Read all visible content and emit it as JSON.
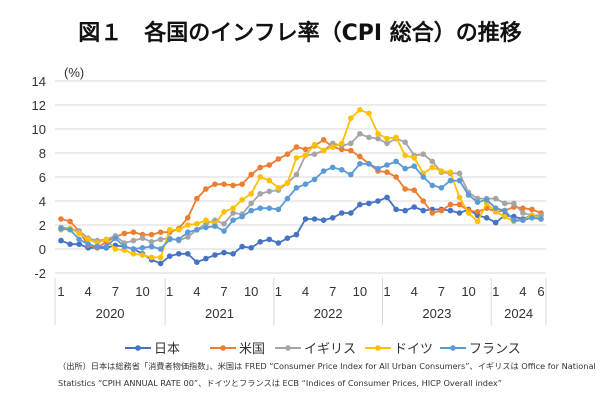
{
  "chart_data": {
    "type": "line",
    "title": "図１　各国のインフレ率（CPI 総合）の推移",
    "ylabel": "(%)",
    "ylim": [
      -2,
      14
    ],
    "yticks": [
      "-2",
      "0",
      "2",
      "4",
      "6",
      "8",
      "10",
      "12",
      "14"
    ],
    "grid": true,
    "legend_position": "bottom",
    "x_tick_labels": [
      {
        "month": 1,
        "label": "1"
      },
      {
        "month": 4,
        "label": "4"
      },
      {
        "month": 7,
        "label": "7"
      },
      {
        "month": 10,
        "label": "10"
      },
      {
        "month": 13,
        "label": "1"
      },
      {
        "month": 16,
        "label": "4"
      },
      {
        "month": 19,
        "label": "7"
      },
      {
        "month": 22,
        "label": "10"
      },
      {
        "month": 25,
        "label": "1"
      },
      {
        "month": 28,
        "label": "4"
      },
      {
        "month": 31,
        "label": "7"
      },
      {
        "month": 34,
        "label": "10"
      },
      {
        "month": 37,
        "label": "1"
      },
      {
        "month": 40,
        "label": "4"
      },
      {
        "month": 43,
        "label": "7"
      },
      {
        "month": 46,
        "label": "10"
      },
      {
        "month": 49,
        "label": "1"
      },
      {
        "month": 52,
        "label": "4"
      },
      {
        "month": 54,
        "label": "6"
      }
    ],
    "years": [
      "2020",
      "2021",
      "2022",
      "2023",
      "2024"
    ],
    "series": [
      {
        "name": "日本",
        "color": "#4472C4",
        "values": [
          0.7,
          0.4,
          0.4,
          0.1,
          0.1,
          0.1,
          0.3,
          0.2,
          0.0,
          -0.4,
          -0.9,
          -1.2,
          -0.6,
          -0.4,
          -0.4,
          -1.1,
          -0.8,
          -0.5,
          -0.3,
          -0.4,
          0.2,
          0.1,
          0.6,
          0.8,
          0.5,
          0.9,
          1.2,
          2.5,
          2.5,
          2.4,
          2.6,
          3.0,
          3.0,
          3.7,
          3.8,
          4.0,
          4.3,
          3.3,
          3.2,
          3.5,
          3.2,
          3.3,
          3.3,
          3.2,
          3.0,
          3.3,
          2.8,
          2.6,
          2.2,
          2.8,
          2.7,
          2.5,
          2.8,
          2.8
        ]
      },
      {
        "name": "米国",
        "color": "#ED7D31",
        "values": [
          2.5,
          2.3,
          1.5,
          0.3,
          0.1,
          0.6,
          1.0,
          1.3,
          1.4,
          1.2,
          1.2,
          1.4,
          1.4,
          1.7,
          2.6,
          4.2,
          5.0,
          5.4,
          5.4,
          5.3,
          5.4,
          6.2,
          6.8,
          7.0,
          7.5,
          7.9,
          8.5,
          8.3,
          8.6,
          9.1,
          8.5,
          8.3,
          8.2,
          7.7,
          7.1,
          6.5,
          6.4,
          6.0,
          5.0,
          4.9,
          4.0,
          3.0,
          3.2,
          3.7,
          3.7,
          3.2,
          3.1,
          3.4,
          3.1,
          3.2,
          3.5,
          3.4,
          3.3,
          3.0
        ]
      },
      {
        "name": "イギリス",
        "color": "#A5A5A5",
        "values": [
          1.8,
          1.7,
          1.5,
          0.9,
          0.7,
          0.8,
          1.1,
          0.5,
          0.7,
          0.9,
          0.6,
          0.8,
          0.9,
          0.7,
          1.0,
          1.6,
          2.1,
          2.4,
          2.1,
          3.0,
          2.9,
          3.8,
          4.6,
          4.8,
          4.9,
          5.5,
          6.2,
          7.8,
          7.9,
          8.2,
          8.8,
          8.6,
          8.8,
          9.6,
          9.3,
          9.2,
          8.8,
          9.2,
          8.9,
          7.8,
          7.9,
          7.3,
          6.4,
          6.3,
          6.3,
          4.7,
          4.2,
          4.2,
          4.2,
          3.8,
          3.8,
          3.0,
          2.8,
          2.8
        ]
      },
      {
        "name": "ドイツ",
        "color": "#FFC000",
        "values": [
          1.6,
          1.7,
          1.3,
          0.8,
          0.5,
          0.8,
          0.0,
          -0.1,
          -0.4,
          -0.5,
          -0.7,
          -0.7,
          1.6,
          1.6,
          2.0,
          2.1,
          2.4,
          2.1,
          3.1,
          3.4,
          4.1,
          4.6,
          6.0,
          5.7,
          5.1,
          5.5,
          7.6,
          7.8,
          8.7,
          8.2,
          8.5,
          8.8,
          10.9,
          11.6,
          11.3,
          9.6,
          9.2,
          9.3,
          7.8,
          7.6,
          6.3,
          6.8,
          6.5,
          6.4,
          4.3,
          3.0,
          2.3,
          3.8,
          3.1,
          2.7,
          2.3,
          2.4,
          2.8,
          2.5
        ]
      },
      {
        "name": "フランス",
        "color": "#5B9BD5",
        "values": [
          1.7,
          1.6,
          0.8,
          0.4,
          0.2,
          0.2,
          0.9,
          0.2,
          0.0,
          0.1,
          0.2,
          0.0,
          0.8,
          0.8,
          1.4,
          1.6,
          1.8,
          1.9,
          1.5,
          2.4,
          2.7,
          3.2,
          3.4,
          3.4,
          3.3,
          4.2,
          5.1,
          5.4,
          5.8,
          6.5,
          6.8,
          6.6,
          6.2,
          7.1,
          7.1,
          6.7,
          7.0,
          7.3,
          6.7,
          6.9,
          6.0,
          5.3,
          5.1,
          5.7,
          5.7,
          4.5,
          3.9,
          4.1,
          3.4,
          3.2,
          2.4,
          2.4,
          2.6,
          2.5
        ]
      }
    ],
    "source_note": [
      "（出所）日本は総務省「消費者物価指数」、米国は FRED “Consumer Price Index for All Urban Consumers”、イギリスは Office for National",
      "Statistics “CPIH ANNUAL RATE 00”、ドイツとフランスは ECB “Indices of Consumer Prices, HICP Overall index”"
    ]
  }
}
